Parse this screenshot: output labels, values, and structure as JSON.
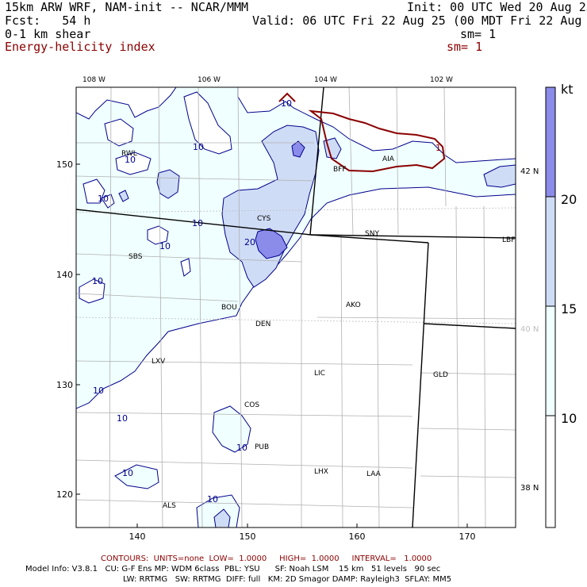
{
  "header": {
    "model": "15km ARW WRF, NAM-init -- NCAR/MMM",
    "init": "Init: 00 UTC Wed 20 Aug 25",
    "fcst": "Fcst:   54 h",
    "valid": "Valid: 06 UTC Fri 22 Aug 25 (00 MDT Fri 22 Aug 25)",
    "field1": "0-1 km shear",
    "sm1": "sm= 1",
    "field2": "Energy-helicity index",
    "sm2": "sm= 1"
  },
  "map": {
    "top_lon_labels": [
      "108 W",
      "106 W",
      "104 W",
      "102 W"
    ],
    "right_lat_labels": [
      "42 N",
      "40 N",
      "38 N"
    ],
    "left_ticks": [
      "150",
      "140",
      "130",
      "120"
    ],
    "bottom_ticks": [
      "140",
      "150",
      "160",
      "170"
    ],
    "stations": [
      "RWL",
      "BFF",
      "AIA",
      "CYS",
      "SNY",
      "LBF",
      "SBS",
      "AKO",
      "BOU",
      "DEN",
      "LXV",
      "LIC",
      "GLD",
      "COS",
      "PUB",
      "LHX",
      "LAA",
      "ALS"
    ],
    "contour_labels": [
      "10",
      "20",
      "1"
    ],
    "colors": {
      "fill10": "#f0ffff",
      "fill15": "#cfdcf6",
      "fill20": "#8b8bea",
      "contour": "#00008b",
      "ehi": "#8b0000",
      "border": "#000000",
      "grid": "#bfbfbf"
    }
  },
  "colorbar": {
    "unit": "kt",
    "labels": [
      "20",
      "15",
      "10"
    ]
  },
  "footer": {
    "contours": "CONTOURS:  UNITS=none  LOW=  1.0000     HIGH=  1.0000     INTERVAL=   1.0000",
    "line1": "Model Info: V3.8.1   CU: G-F Ens MP: WDM 6class  PBL: YSU      SF: Noah LSM    15 km   51 levels   90 sec",
    "line2": "LW: RRTMG   SW: RRTMG  DIFF: full   KM: 2D Smagor DAMP: Rayleigh3  SFLAY: MM5"
  }
}
